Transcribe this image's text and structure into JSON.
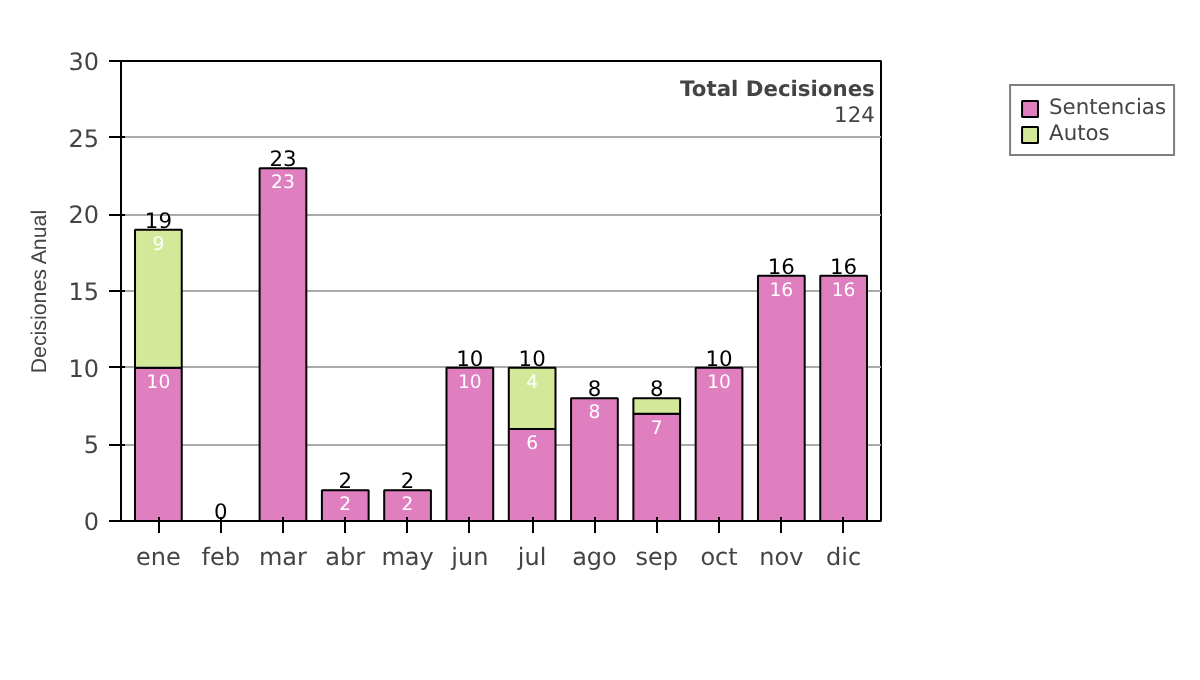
{
  "chart_data": {
    "type": "bar",
    "stacked": true,
    "ylabel": "Decisiones Anual",
    "categories": [
      "ene",
      "feb",
      "mar",
      "abr",
      "may",
      "jun",
      "jul",
      "ago",
      "sep",
      "oct",
      "nov",
      "dic"
    ],
    "series": [
      {
        "name": "Sentencias",
        "color": "#e07fc0",
        "values": [
          10,
          0,
          23,
          2,
          2,
          10,
          6,
          8,
          7,
          10,
          16,
          16
        ],
        "value_labels": [
          "10",
          null,
          "23",
          "2",
          "2",
          "10",
          "6",
          "8",
          "7",
          "10",
          "16",
          "16"
        ]
      },
      {
        "name": "Autos",
        "color": "#d4e89a",
        "values": [
          9,
          0,
          0,
          0,
          0,
          0,
          4,
          0,
          1,
          0,
          0,
          0
        ],
        "value_labels": [
          "9",
          null,
          null,
          null,
          null,
          null,
          "4",
          null,
          null,
          null,
          null,
          null
        ]
      }
    ],
    "totals": [
      "19",
      "0",
      "23",
      "2",
      "2",
      "10",
      "10",
      "8",
      "8",
      "10",
      "16",
      "16"
    ],
    "ylim": [
      0,
      30
    ],
    "yticks": [
      0,
      5,
      10,
      15,
      20,
      25,
      30
    ],
    "grid": "y",
    "legend": "right",
    "annotations": [
      "Total Decisiones",
      "124"
    ]
  }
}
